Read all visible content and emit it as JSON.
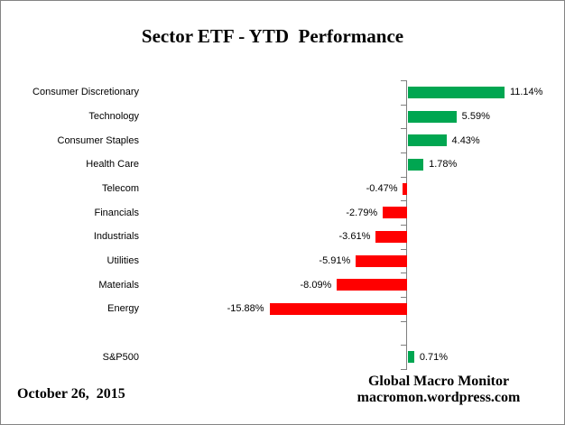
{
  "chart_data": {
    "type": "bar",
    "orientation": "horizontal",
    "title": "Sector ETF - YTD  Performance",
    "categories": [
      "Consumer Discretionary",
      "Technology",
      "Consumer Staples",
      "Health Care",
      "Telecom",
      "Financials",
      "Industrials",
      "Utilities",
      "Materials",
      "Energy",
      "",
      "S&P500"
    ],
    "values": [
      11.14,
      5.59,
      4.43,
      1.78,
      -0.47,
      -2.79,
      -3.61,
      -5.91,
      -8.09,
      -15.88,
      null,
      0.71
    ],
    "value_labels": [
      "11.14%",
      "5.59%",
      "4.43%",
      "1.78%",
      "-0.47%",
      "-2.79%",
      "-3.61%",
      "-5.91%",
      "-8.09%",
      "-15.88%",
      "",
      "0.71%"
    ],
    "positive_color": "#00A651",
    "negative_color": "#FF0000",
    "axis_color": "#7f7f7f",
    "xlim": [
      -16.5,
      12.5
    ],
    "grid": false,
    "legend": "none"
  },
  "footer": {
    "date": "October 26,  2015",
    "credit_line1": "Global Macro Monitor",
    "credit_line2": "macromon.wordpress.com"
  }
}
